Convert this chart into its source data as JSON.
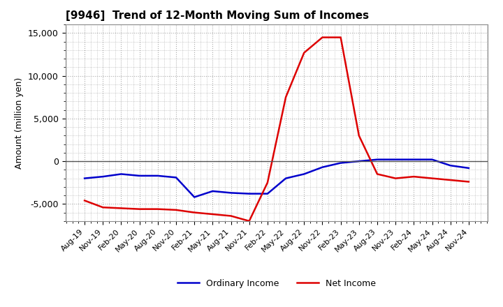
{
  "title": "[9946]  Trend of 12-Month Moving Sum of Incomes",
  "ylabel": "Amount (million yen)",
  "ylim": [
    -7000,
    16000
  ],
  "yticks": [
    -5000,
    0,
    5000,
    10000,
    15000
  ],
  "background_color": "#ffffff",
  "grid_color": "#aaaaaa",
  "ordinary_income_color": "#0000cc",
  "net_income_color": "#dd0000",
  "x_labels": [
    "Aug-19",
    "Nov-19",
    "Feb-20",
    "May-20",
    "Aug-20",
    "Nov-20",
    "Feb-21",
    "May-21",
    "Aug-21",
    "Nov-21",
    "Feb-22",
    "May-22",
    "Aug-22",
    "Nov-22",
    "Feb-23",
    "May-23",
    "Aug-23",
    "Nov-23",
    "Feb-24",
    "May-24",
    "Aug-24",
    "Nov-24"
  ],
  "ordinary_income": [
    -2000,
    -1800,
    -1500,
    -1700,
    -1700,
    -1900,
    -4200,
    -3500,
    -3700,
    -3800,
    -3800,
    -2000,
    -1500,
    -700,
    -200,
    0,
    200,
    200,
    200,
    200,
    -500,
    -800
  ],
  "net_income": [
    -4600,
    -5400,
    -5500,
    -5600,
    -5600,
    -5700,
    -6000,
    -6200,
    -6400,
    -7000,
    -2500,
    7500,
    12700,
    14500,
    14500,
    3000,
    -1500,
    -2000,
    -1800,
    -2000,
    -2200,
    -2400
  ]
}
